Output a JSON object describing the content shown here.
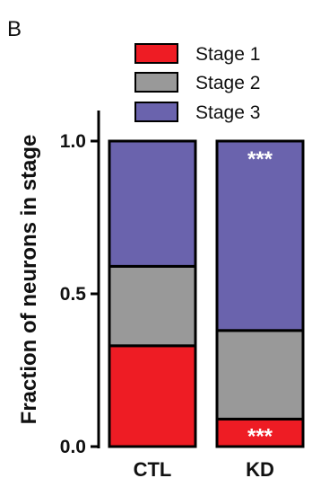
{
  "panel_label": "B",
  "colors": {
    "Stage 1": "#ee1c24",
    "Stage 2": "#999999",
    "Stage 3": "#6a63ad"
  },
  "chart_data": {
    "type": "bar",
    "stacked": true,
    "categories": [
      "CTL",
      "KD"
    ],
    "series": [
      {
        "name": "Stage 1",
        "values": [
          0.33,
          0.09
        ]
      },
      {
        "name": "Stage 2",
        "values": [
          0.26,
          0.29
        ]
      },
      {
        "name": "Stage 3",
        "values": [
          0.41,
          0.62
        ]
      }
    ],
    "ylabel": "Fraction of neurons in stage",
    "ylim": [
      0.0,
      1.0
    ],
    "yticks": [
      0.0,
      0.5,
      1.0
    ],
    "ytick_labels": [
      "0.0",
      "0.5",
      "1.0"
    ],
    "legend_position": "top",
    "grid": false,
    "annotations": [
      {
        "category": "KD",
        "series": "Stage 3",
        "text": "***"
      },
      {
        "category": "KD",
        "series": "Stage 1",
        "text": "***"
      }
    ]
  }
}
